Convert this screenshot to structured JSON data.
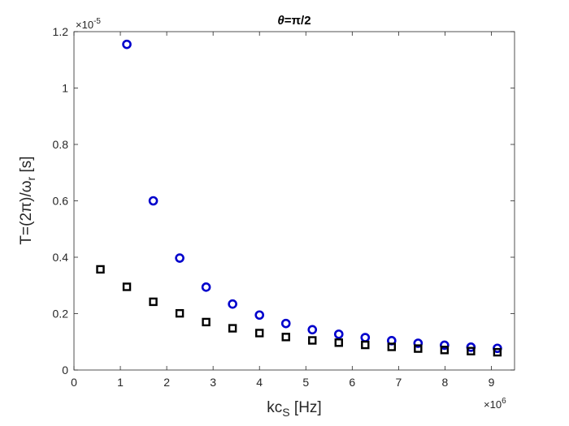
{
  "chart_data": {
    "type": "scatter",
    "title_symbol": "θ",
    "title_rest": "=π/2",
    "xlabel_main": "kc",
    "xlabel_sub": "S",
    "xlabel_unit": " [Hz]",
    "ylabel_main": "T=(2π)/ω",
    "ylabel_sub": "r",
    "ylabel_unit": " [s]",
    "x_exponent_base": "×10",
    "x_exponent_power": "6",
    "y_exponent_base": "×10",
    "y_exponent_power": "-5",
    "xlim": [
      0,
      9.5
    ],
    "ylim": [
      0,
      1.2
    ],
    "xticks": [
      0,
      1,
      2,
      3,
      4,
      5,
      6,
      7,
      8,
      9
    ],
    "yticks": [
      0,
      0.2,
      0.4,
      0.6,
      0.8,
      1,
      1.2
    ],
    "grid": false,
    "series": [
      {
        "marker": "circle",
        "color": "#0000cc",
        "x": [
          1.14,
          1.71,
          2.28,
          2.85,
          3.42,
          4.0,
          4.57,
          5.14,
          5.71,
          6.28,
          6.85,
          7.42,
          7.99,
          8.56,
          9.13
        ],
        "y": [
          1.155,
          0.6,
          0.397,
          0.294,
          0.234,
          0.195,
          0.165,
          0.143,
          0.127,
          0.115,
          0.104,
          0.095,
          0.088,
          0.081,
          0.077
        ]
      },
      {
        "marker": "square",
        "color": "#000000",
        "x": [
          0.57,
          1.14,
          1.71,
          2.28,
          2.85,
          3.42,
          4.0,
          4.57,
          5.14,
          5.71,
          6.28,
          6.85,
          7.42,
          7.99,
          8.56,
          9.13
        ],
        "y": [
          0.357,
          0.295,
          0.242,
          0.201,
          0.17,
          0.148,
          0.131,
          0.117,
          0.105,
          0.097,
          0.089,
          0.082,
          0.076,
          0.071,
          0.067,
          0.063
        ]
      }
    ]
  }
}
